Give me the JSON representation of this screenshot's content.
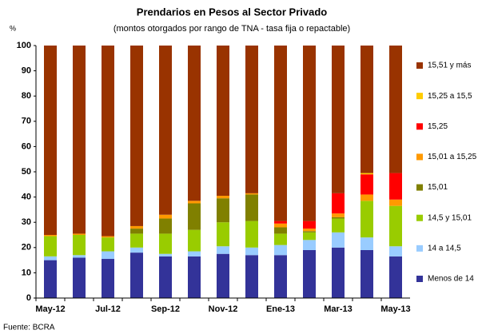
{
  "chart_data": {
    "type": "stacked_bar",
    "title": "Prendarios en Pesos al Sector Privado",
    "subtitle": "(montos otorgados por rango de TNA - tasa fija o repactable)",
    "ylabel": "%",
    "source": "Fuente: BCRA",
    "categories": [
      "May-12",
      null,
      "Jul-12",
      null,
      "Sep-12",
      null,
      "Nov-12",
      null,
      "Ene-13",
      null,
      "Mar-13",
      null,
      "May-13"
    ],
    "ylim": [
      0,
      100
    ],
    "yticks": [
      0,
      10,
      20,
      30,
      40,
      50,
      60,
      70,
      80,
      90,
      100
    ],
    "series": [
      {
        "name": "Menos de 14",
        "color": "#333399",
        "values": [
          15,
          16,
          15.5,
          18,
          16.5,
          16.5,
          17.5,
          17,
          17,
          19,
          20,
          19,
          16.5
        ]
      },
      {
        "name": "14 a 14,5",
        "color": "#99ccff",
        "values": [
          1.5,
          1,
          3,
          2,
          1,
          2,
          3,
          3,
          4,
          4,
          6,
          5,
          4
        ]
      },
      {
        "name": "14,5 y 15,01",
        "color": "#99cc00",
        "values": [
          8,
          8,
          5.5,
          5.5,
          8,
          8.5,
          9.5,
          10.5,
          4.5,
          3,
          5.5,
          14.5,
          16
        ]
      },
      {
        "name": "15,01",
        "color": "#808000",
        "values": [
          0,
          0,
          0,
          2,
          6,
          10.5,
          9.5,
          10.5,
          2.5,
          0.5,
          0.5,
          0,
          0
        ]
      },
      {
        "name": "15,01 a 15,25",
        "color": "#ff9900",
        "values": [
          0.5,
          0.5,
          0.5,
          1,
          1.5,
          1,
          1,
          0.5,
          1.5,
          1,
          1.5,
          2.5,
          2.5
        ]
      },
      {
        "name": "15,25",
        "color": "#ff0000",
        "values": [
          0,
          0,
          0,
          0,
          0,
          0,
          0,
          0,
          1,
          3,
          8,
          8,
          10.5
        ]
      },
      {
        "name": "15,25 a 15,5",
        "color": "#ffcc00",
        "values": [
          0,
          0,
          0,
          0,
          0,
          0,
          0,
          0,
          0,
          0,
          0,
          0.5,
          0
        ]
      },
      {
        "name": "15,51 y más",
        "color": "#993300",
        "values": [
          75,
          74.5,
          75.5,
          71.5,
          67,
          61.5,
          59.5,
          58.5,
          69.5,
          69.5,
          58.5,
          50.5,
          50.5
        ]
      }
    ]
  }
}
